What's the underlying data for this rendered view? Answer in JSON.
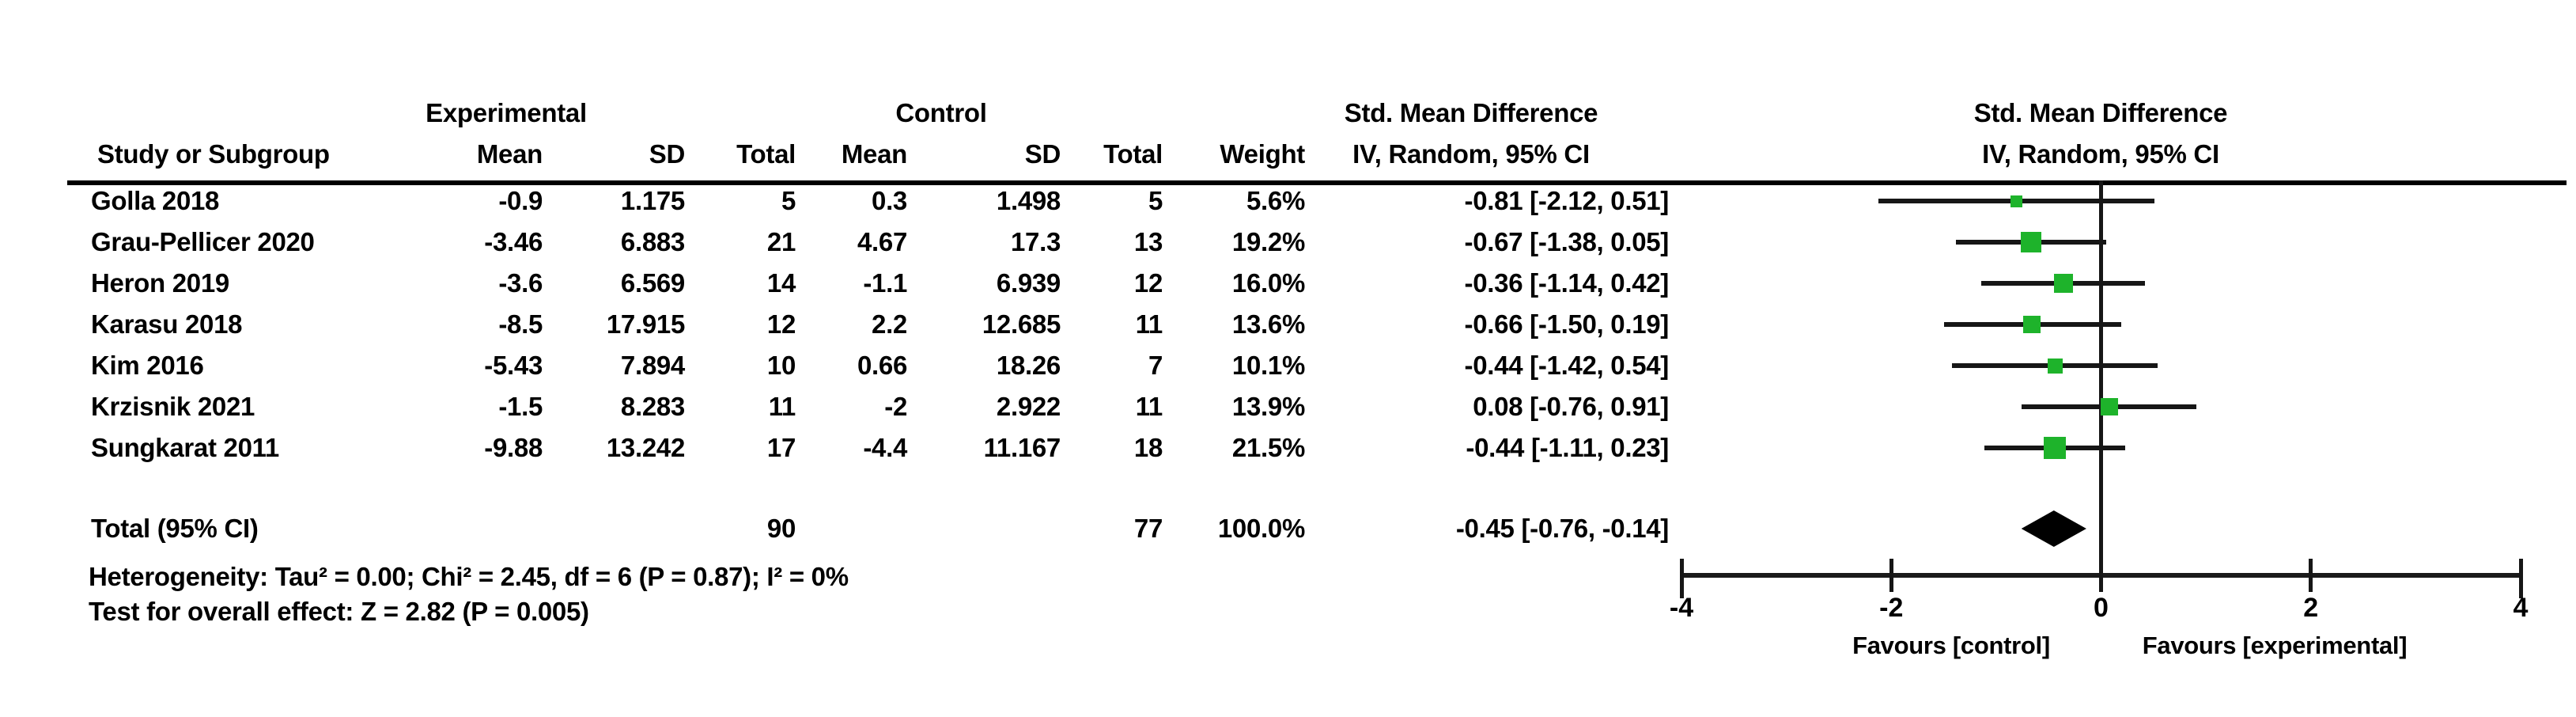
{
  "chart_data": {
    "type": "forest",
    "effect_measure": "Std. Mean Difference",
    "method": "IV, Random, 95% CI",
    "group_labels": {
      "experimental": "Experimental",
      "control": "Control"
    },
    "column_labels": {
      "study": "Study or Subgroup",
      "mean": "Mean",
      "sd": "SD",
      "total": "Total",
      "weight": "Weight"
    },
    "xlim": [
      -4,
      4
    ],
    "x_ticks": [
      -4,
      -2,
      0,
      2,
      4
    ],
    "x_axis_labels": {
      "left": "Favours [control]",
      "right": "Favours [experimental]"
    },
    "studies": [
      {
        "name": "Golla 2018",
        "exp_mean": "-0.9",
        "exp_sd": "1.175",
        "exp_total": "5",
        "ctrl_mean": "0.3",
        "ctrl_sd": "1.498",
        "ctrl_total": "5",
        "weight": "5.6%",
        "ci_text": "-0.81 [-2.12, 0.51]",
        "smd": -0.81,
        "ci_low": -2.12,
        "ci_high": 0.51,
        "weight_pct": 5.6
      },
      {
        "name": "Grau-Pellicer 2020",
        "exp_mean": "-3.46",
        "exp_sd": "6.883",
        "exp_total": "21",
        "ctrl_mean": "4.67",
        "ctrl_sd": "17.3",
        "ctrl_total": "13",
        "weight": "19.2%",
        "ci_text": "-0.67 [-1.38, 0.05]",
        "smd": -0.67,
        "ci_low": -1.38,
        "ci_high": 0.05,
        "weight_pct": 19.2
      },
      {
        "name": "Heron 2019",
        "exp_mean": "-3.6",
        "exp_sd": "6.569",
        "exp_total": "14",
        "ctrl_mean": "-1.1",
        "ctrl_sd": "6.939",
        "ctrl_total": "12",
        "weight": "16.0%",
        "ci_text": "-0.36 [-1.14, 0.42]",
        "smd": -0.36,
        "ci_low": -1.14,
        "ci_high": 0.42,
        "weight_pct": 16.0
      },
      {
        "name": "Karasu 2018",
        "exp_mean": "-8.5",
        "exp_sd": "17.915",
        "exp_total": "12",
        "ctrl_mean": "2.2",
        "ctrl_sd": "12.685",
        "ctrl_total": "11",
        "weight": "13.6%",
        "ci_text": "-0.66 [-1.50, 0.19]",
        "smd": -0.66,
        "ci_low": -1.5,
        "ci_high": 0.19,
        "weight_pct": 13.6
      },
      {
        "name": "Kim 2016",
        "exp_mean": "-5.43",
        "exp_sd": "7.894",
        "exp_total": "10",
        "ctrl_mean": "0.66",
        "ctrl_sd": "18.26",
        "ctrl_total": "7",
        "weight": "10.1%",
        "ci_text": "-0.44 [-1.42, 0.54]",
        "smd": -0.44,
        "ci_low": -1.42,
        "ci_high": 0.54,
        "weight_pct": 10.1
      },
      {
        "name": "Krzisnik 2021",
        "exp_mean": "-1.5",
        "exp_sd": "8.283",
        "exp_total": "11",
        "ctrl_mean": "-2",
        "ctrl_sd": "2.922",
        "ctrl_total": "11",
        "weight": "13.9%",
        "ci_text": "0.08 [-0.76, 0.91]",
        "smd": 0.08,
        "ci_low": -0.76,
        "ci_high": 0.91,
        "weight_pct": 13.9
      },
      {
        "name": "Sungkarat 2011",
        "exp_mean": "-9.88",
        "exp_sd": "13.242",
        "exp_total": "17",
        "ctrl_mean": "-4.4",
        "ctrl_sd": "11.167",
        "ctrl_total": "18",
        "weight": "21.5%",
        "ci_text": "-0.44 [-1.11, 0.23]",
        "smd": -0.44,
        "ci_low": -1.11,
        "ci_high": 0.23,
        "weight_pct": 21.5
      }
    ],
    "total": {
      "label": "Total (95% CI)",
      "exp_total": "90",
      "ctrl_total": "77",
      "weight": "100.0%",
      "ci_text": "-0.45 [-0.76, -0.14]",
      "smd": -0.45,
      "ci_low": -0.76,
      "ci_high": -0.14
    },
    "heterogeneity": "Heterogeneity: Tau² = 0.00; Chi² = 2.45, df = 6 (P = 0.87); I² = 0%",
    "overall_effect": "Test for overall effect: Z = 2.82 (P = 0.005)"
  },
  "colors": {
    "square_green": "#1eb32b",
    "line_black": "#161616"
  }
}
